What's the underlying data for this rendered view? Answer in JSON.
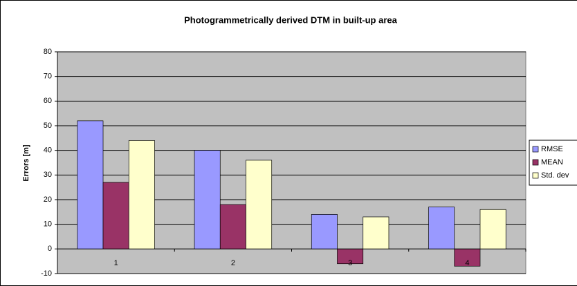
{
  "chart_data": {
    "type": "bar",
    "title": "Photogrammetrically derived DTM in built-up area",
    "y_label": "Errors [m]",
    "categories": [
      "1",
      "2",
      "3",
      "4"
    ],
    "series": [
      {
        "name": "RMSE",
        "color": "#9999ff",
        "values": [
          52,
          40,
          14,
          17
        ]
      },
      {
        "name": "MEAN",
        "color": "#993366",
        "values": [
          27,
          18,
          -6,
          -7
        ]
      },
      {
        "name": "Std. dev",
        "color": "#ffffcc",
        "values": [
          44,
          36,
          13,
          16
        ]
      }
    ],
    "ylim": [
      -10,
      80
    ],
    "yticks": [
      -10,
      0,
      10,
      20,
      30,
      40,
      50,
      60,
      70,
      80
    ],
    "grid": true,
    "legend": "right",
    "plot_background": "#c0c0c0"
  }
}
